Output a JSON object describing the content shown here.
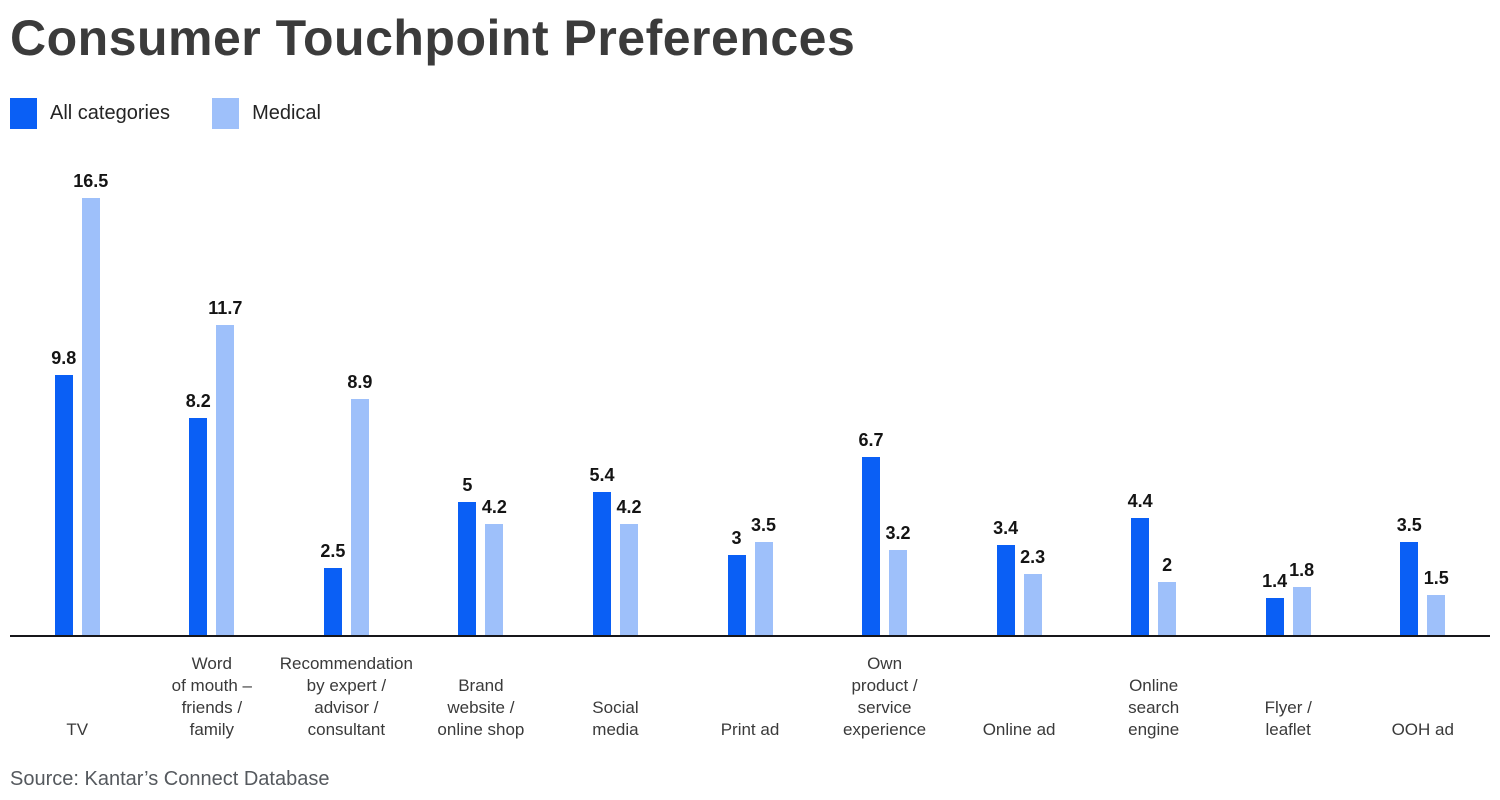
{
  "title": "Consumer Touchpoint Preferences",
  "source": "Source: Kantar’s Connect Database",
  "legend": {
    "items": [
      {
        "label": "All categories",
        "color": "#0a5ff5"
      },
      {
        "label": "Medical",
        "color": "#9ec0fa"
      }
    ]
  },
  "chart_data": {
    "type": "bar",
    "title": "Consumer Touchpoint Preferences",
    "categories": [
      "TV",
      "Word\nof mouth –\nfriends /\nfamily",
      "Recommendation\nby expert /\nadvisor /\nconsultant",
      "Brand\nwebsite /\nonline shop",
      "Social\nmedia",
      "Print ad",
      "Own\nproduct /\nservice\nexperience",
      "Online ad",
      "Online\nsearch\nengine",
      "Flyer /\nleaflet",
      "OOH ad"
    ],
    "series": [
      {
        "name": "All categories",
        "color": "#0a5ff5",
        "values": [
          9.8,
          8.2,
          2.5,
          5,
          5.4,
          3,
          6.7,
          3.4,
          4.4,
          1.4,
          3.5
        ]
      },
      {
        "name": "Medical",
        "color": "#9ec0fa",
        "values": [
          16.5,
          11.7,
          8.9,
          4.2,
          4.2,
          3.5,
          3.2,
          2.3,
          2,
          1.8,
          1.5
        ]
      }
    ],
    "xlabel": "",
    "ylabel": "",
    "ylim": [
      0,
      17.4
    ],
    "grid": false,
    "value_labels": true,
    "legend_position": "top-left",
    "source": "Source: Kantar’s Connect Database"
  }
}
